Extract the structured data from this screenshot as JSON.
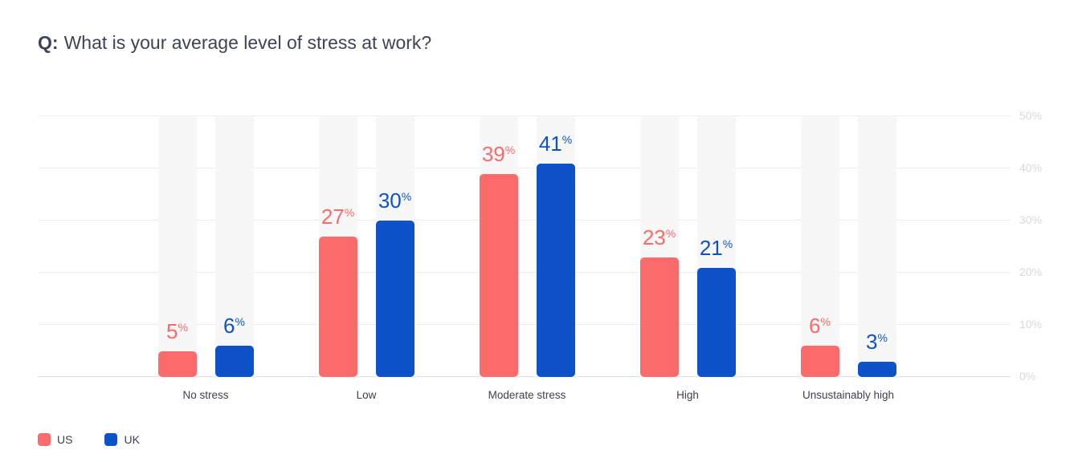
{
  "title": {
    "prefix": "Q:",
    "text": "What is your average level of stress at work?"
  },
  "chart_data": {
    "type": "bar",
    "title": "Q: What is your average level of stress at work?",
    "categories": [
      "No stress",
      "Low",
      "Moderate stress",
      "High",
      "Unsustainably high"
    ],
    "series": [
      {
        "name": "US",
        "color": "#FB6B6B",
        "values": [
          5,
          27,
          39,
          23,
          6
        ]
      },
      {
        "name": "UK",
        "color": "#0E52C8",
        "values": [
          6,
          30,
          41,
          21,
          3
        ]
      }
    ],
    "value_suffix": "%",
    "value_labels_shown": true,
    "y_ticks": [
      "0%",
      "10%",
      "20%",
      "30%",
      "40%",
      "50%"
    ],
    "ylim": [
      0,
      50
    ],
    "y_axis_side": "right",
    "grid": true,
    "grid_color": "#EDEDED",
    "baseline_color": "#DEDEDE",
    "track_color": "#F7F7F7",
    "axis_label_color": "#D9D9D9",
    "legend_position": "bottom-left"
  }
}
